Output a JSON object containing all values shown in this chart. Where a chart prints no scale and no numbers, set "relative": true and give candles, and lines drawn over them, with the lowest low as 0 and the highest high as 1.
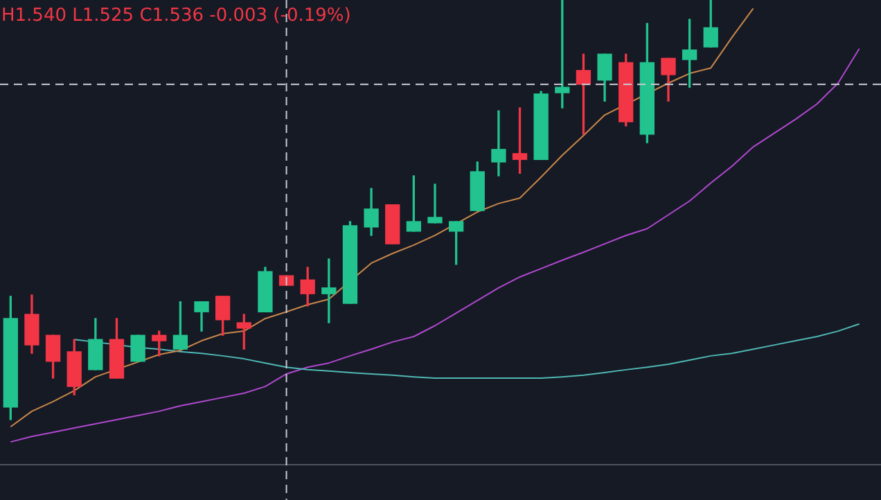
{
  "chart_data": {
    "type": "candlestick",
    "relative": true,
    "categories": [
      null,
      null,
      null,
      null,
      null,
      null,
      null,
      null,
      null,
      null,
      null,
      null,
      null,
      null,
      null,
      null,
      null,
      null,
      null,
      null,
      null,
      null,
      null,
      null,
      null,
      null,
      null,
      null,
      null,
      null,
      null,
      null,
      null,
      null,
      null,
      null,
      null,
      null,
      null,
      null,
      null
    ],
    "ohlc": [
      [
        0.03,
        0.294,
        0,
        0.241
      ],
      [
        0.251,
        0.297,
        0.158,
        0.178
      ],
      [
        0.201,
        0.201,
        0.099,
        0.139
      ],
      [
        0.162,
        0.191,
        0.059,
        0.079
      ],
      [
        0.119,
        0.241,
        0.119,
        0.191
      ],
      [
        0.191,
        0.241,
        0.099,
        0.099
      ],
      [
        0.139,
        0.201,
        0.139,
        0.201
      ],
      [
        0.201,
        0.211,
        0.152,
        0.188
      ],
      [
        0.168,
        0.281,
        0.168,
        0.201
      ],
      [
        0.257,
        0.281,
        0.211,
        0.281
      ],
      [
        0.294,
        0.294,
        0.201,
        0.238
      ],
      [
        0.231,
        0.251,
        0.168,
        0.218
      ],
      [
        0.257,
        0.363,
        0.257,
        0.353
      ],
      [
        0.343,
        0.343,
        0.32,
        0.32
      ],
      [
        0.333,
        0.363,
        0.271,
        0.3
      ],
      [
        0.3,
        0.383,
        0.231,
        0.314
      ],
      [
        0.277,
        0.472,
        0.277,
        0.462
      ],
      [
        0.459,
        0.551,
        0.439,
        0.502
      ],
      [
        0.512,
        0.512,
        0.419,
        0.419
      ],
      [
        0.449,
        0.581,
        0.449,
        0.472
      ],
      [
        0.469,
        0.561,
        0.469,
        0.482
      ],
      [
        0.449,
        0.472,
        0.37,
        0.472
      ],
      [
        0.498,
        0.614,
        0.498,
        0.591
      ],
      [
        0.614,
        0.736,
        0.581,
        0.644
      ],
      [
        0.634,
        0.743,
        0.587,
        0.62
      ],
      [
        0.62,
        0.782,
        0.62,
        0.776
      ],
      [
        0.779,
        1,
        0.743,
        0.792
      ],
      [
        0.832,
        0.871,
        0.68,
        0.799
      ],
      [
        0.809,
        0.871,
        0.759,
        0.871
      ],
      [
        0.851,
        0.871,
        0.7,
        0.71
      ],
      [
        0.68,
        0.944,
        0.66,
        0.851
      ],
      [
        0.861,
        0.861,
        0.759,
        0.822
      ],
      [
        0.858,
        0.954,
        0.792,
        0.881
      ],
      [
        0.888,
        1,
        0.888,
        0.934
      ],
      null,
      null,
      null,
      null,
      null,
      null,
      null
    ],
    "colors": [
      "#22c38e",
      "#f23645",
      "#f23645",
      "#f23645",
      "#22c38e",
      "#f23645",
      "#22c38e",
      "#f23645",
      "#22c38e",
      "#22c38e",
      "#f23645",
      "#f23645",
      "#22c38e",
      "#f23645",
      "#f23645",
      "#22c38e",
      "#22c38e",
      "#22c38e",
      "#f23645",
      "#22c38e",
      "#22c38e",
      "#22c38e",
      "#22c38e",
      "#22c38e",
      "#f23645",
      "#22c38e",
      "#22c38e",
      "#f23645",
      "#22c38e",
      "#f23645",
      "#22c38e",
      "#f23645",
      "#22c38e",
      "#22c38e",
      null,
      null,
      null,
      null,
      null,
      null,
      null
    ],
    "series": [
      {
        "type": "line",
        "color": "#c9874a",
        "values": [
          -0.017,
          0.02,
          0.043,
          0.069,
          0.102,
          null,
          null,
          0.155,
          0.165,
          0.188,
          0.205,
          0.211,
          0.241,
          0.257,
          0.274,
          0.287,
          null,
          0.373,
          0.396,
          0.416,
          0.439,
          null,
          0.495,
          0.515,
          0.528,
          0.578,
          0.63,
          0.677,
          0.726,
          null,
          null,
          0.802,
          0.825,
          0.838,
          0.911,
          0.98,
          null,
          null,
          null,
          null,
          null
        ]
      },
      {
        "type": "line",
        "color": "#4fb8b5",
        "values": [
          null,
          null,
          null,
          0.191,
          0.185,
          null,
          0.172,
          0.168,
          0.162,
          0.158,
          0.152,
          0.145,
          0.135,
          0.125,
          0.119,
          0.116,
          0.112,
          0.109,
          0.106,
          0.102,
          0.099,
          0.099,
          0.099,
          0.099,
          0.099,
          0.099,
          0.102,
          0.106,
          0.112,
          0.119,
          0.125,
          0.132,
          0.142,
          0.152,
          0.158,
          0.168,
          0.178,
          0.188,
          0.198,
          0.211,
          0.228
        ]
      },
      {
        "type": "line",
        "color": "#b048cf",
        "values": [
          -0.053,
          -0.04,
          -0.03,
          -0.02,
          -0.01,
          0,
          0.01,
          0.02,
          0.033,
          0.043,
          0.053,
          0.063,
          0.079,
          0.109,
          0.125,
          0.135,
          0.152,
          0.168,
          0.185,
          0.198,
          0.224,
          0.254,
          0.284,
          0.314,
          0.34,
          0.36,
          0.38,
          0.399,
          0.419,
          0.439,
          0.455,
          0.488,
          0.521,
          0.564,
          0.604,
          0.65,
          0.683,
          0.716,
          0.752,
          0.802,
          0.884
        ]
      }
    ],
    "ref_lines": [
      {
        "axis": "y",
        "value": 0.799,
        "color": "#c8cbd4",
        "line_style": "dashed"
      }
    ],
    "annotations": [
      "H1.540 L1.525 C1.536 -0.003 (-0.19%)"
    ],
    "legend": false
  }
}
